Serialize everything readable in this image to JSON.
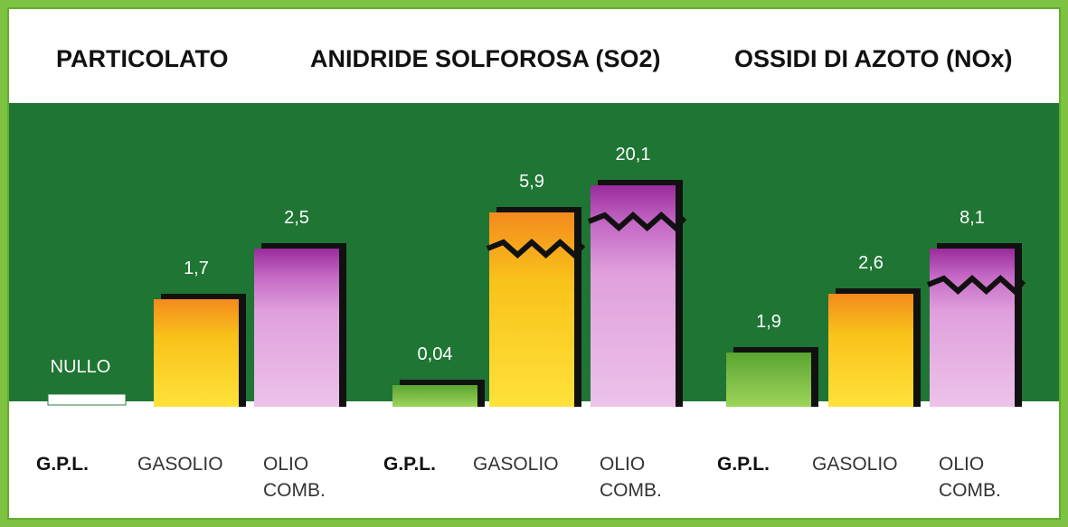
{
  "chart_data": [
    {
      "type": "bar",
      "title": "PARTICOLATO",
      "categories": [
        "G.P.L.",
        "GASOLIO",
        "OLIO COMB."
      ],
      "values": [
        0,
        1.7,
        2.5
      ],
      "labels": [
        "NULLO",
        "1,7",
        "2,5"
      ]
    },
    {
      "type": "bar",
      "title": "ANIDRIDE SOLFOROSA (SO2)",
      "categories": [
        "G.P.L.",
        "GASOLIO",
        "OLIO COMB."
      ],
      "values": [
        0.04,
        5.9,
        20.1
      ],
      "labels": [
        "0,04",
        "5,9",
        "20,1"
      ]
    },
    {
      "type": "bar",
      "title": "OSSIDI DI AZOTO (NOx)",
      "categories": [
        "G.P.L.",
        "GASOLIO",
        "OLIO COMB."
      ],
      "values": [
        1.9,
        2.6,
        8.1
      ],
      "labels": [
        "1,9",
        "2,6",
        "8,1"
      ]
    }
  ],
  "colors": {
    "gpl": "#7dc143",
    "gasolio": "#f7c020",
    "olio_top": "#9a2c9c",
    "olio_body": "#e0a0dc",
    "band": "#1f7534",
    "frame": "#7ec242"
  }
}
